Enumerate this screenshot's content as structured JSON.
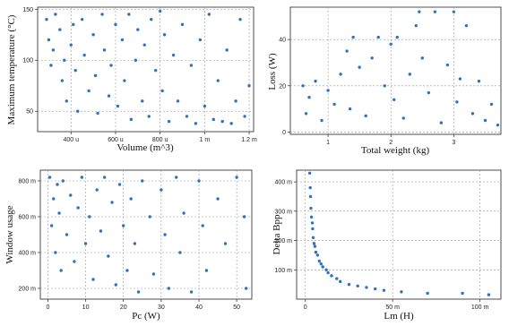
{
  "colors": {
    "points": "#2f72c0",
    "grid": "#9a9a9a",
    "frame": "#222222"
  },
  "chart_data": [
    {
      "type": "scatter",
      "xlabel": "Volume (m^3)",
      "ylabel": "Maximum temperature (°C)",
      "x_ticks": [
        "400 u",
        "600 u",
        "800 u",
        "1 m",
        "1.2 m"
      ],
      "y_ticks": [
        "50",
        "100",
        "150"
      ],
      "x_tick_values": [
        0.0004,
        0.0006,
        0.0008,
        0.001,
        0.0012
      ],
      "y_tick_values": [
        50,
        100,
        150
      ],
      "xlim": [
        0.00025,
        0.00122
      ],
      "ylim": [
        30,
        152
      ],
      "grid": true,
      "legend": "none",
      "points": [
        [
          0.00029,
          140
        ],
        [
          0.0003,
          120
        ],
        [
          0.00031,
          95
        ],
        [
          0.00032,
          110
        ],
        [
          0.00033,
          145
        ],
        [
          0.00035,
          130
        ],
        [
          0.00036,
          80
        ],
        [
          0.00037,
          100
        ],
        [
          0.00038,
          60
        ],
        [
          0.0004,
          115
        ],
        [
          0.00041,
          135
        ],
        [
          0.00042,
          90
        ],
        [
          0.00043,
          50
        ],
        [
          0.00045,
          140
        ],
        [
          0.00046,
          105
        ],
        [
          0.00048,
          70
        ],
        [
          0.0005,
          125
        ],
        [
          0.00051,
          85
        ],
        [
          0.00052,
          48
        ],
        [
          0.00054,
          145
        ],
        [
          0.00055,
          110
        ],
        [
          0.00057,
          65
        ],
        [
          0.00058,
          95
        ],
        [
          0.0006,
          135
        ],
        [
          0.00061,
          55
        ],
        [
          0.00063,
          120
        ],
        [
          0.00064,
          80
        ],
        [
          0.00066,
          145
        ],
        [
          0.00067,
          42
        ],
        [
          0.00069,
          100
        ],
        [
          0.0007,
          130
        ],
        [
          0.00072,
          60
        ],
        [
          0.00073,
          115
        ],
        [
          0.00075,
          45
        ],
        [
          0.00076,
          140
        ],
        [
          0.00078,
          90
        ],
        [
          0.0008,
          148
        ],
        [
          0.00081,
          70
        ],
        [
          0.00082,
          125
        ],
        [
          0.00084,
          40
        ],
        [
          0.00086,
          105
        ],
        [
          0.00088,
          60
        ],
        [
          0.0009,
          135
        ],
        [
          0.00092,
          45
        ],
        [
          0.00094,
          95
        ],
        [
          0.00096,
          38
        ],
        [
          0.00098,
          120
        ],
        [
          0.001,
          55
        ],
        [
          0.00102,
          145
        ],
        [
          0.00104,
          42
        ],
        [
          0.00106,
          80
        ],
        [
          0.00108,
          40
        ],
        [
          0.0011,
          110
        ],
        [
          0.00112,
          38
        ],
        [
          0.00114,
          60
        ],
        [
          0.00116,
          140
        ],
        [
          0.00118,
          45
        ],
        [
          0.0012,
          75
        ]
      ]
    },
    {
      "type": "scatter",
      "xlabel": "Total weight (kg)",
      "ylabel": "Loss (W)",
      "x_ticks": [
        "1",
        "2",
        "3"
      ],
      "y_ticks": [
        "0",
        "20",
        "40"
      ],
      "x_tick_values": [
        1,
        2,
        3
      ],
      "y_tick_values": [
        0,
        20,
        40
      ],
      "xlim": [
        0.4,
        3.75
      ],
      "ylim": [
        -1,
        54
      ],
      "grid": true,
      "legend": "none",
      "points": [
        [
          0.6,
          20
        ],
        [
          0.65,
          8
        ],
        [
          0.7,
          15
        ],
        [
          0.8,
          22
        ],
        [
          0.9,
          5
        ],
        [
          1,
          18
        ],
        [
          1.1,
          12
        ],
        [
          1.2,
          25
        ],
        [
          1.3,
          35
        ],
        [
          1.35,
          10
        ],
        [
          1.4,
          41
        ],
        [
          1.5,
          28
        ],
        [
          1.6,
          7
        ],
        [
          1.7,
          32
        ],
        [
          1.8,
          41
        ],
        [
          1.9,
          20
        ],
        [
          2,
          38
        ],
        [
          2.05,
          14
        ],
        [
          2.1,
          41
        ],
        [
          2.2,
          6
        ],
        [
          2.3,
          25
        ],
        [
          2.4,
          46
        ],
        [
          2.45,
          52
        ],
        [
          2.5,
          32
        ],
        [
          2.6,
          17
        ],
        [
          2.7,
          52
        ],
        [
          2.8,
          4
        ],
        [
          2.9,
          29
        ],
        [
          3,
          52
        ],
        [
          3.05,
          13
        ],
        [
          3.1,
          23
        ],
        [
          3.2,
          46
        ],
        [
          3.3,
          8
        ],
        [
          3.4,
          22
        ],
        [
          3.5,
          5
        ],
        [
          3.6,
          12
        ],
        [
          3.7,
          3
        ]
      ]
    },
    {
      "type": "scatter",
      "xlabel": "Pc (W)",
      "ylabel": "Window usage",
      "x_ticks": [
        "0",
        "10",
        "20",
        "30",
        "40",
        "50"
      ],
      "y_ticks": [
        "200 m",
        "400 m",
        "600 m",
        "800 m"
      ],
      "x_tick_values": [
        0,
        10,
        20,
        30,
        40,
        50
      ],
      "y_tick_values": [
        0.2,
        0.4,
        0.6,
        0.8
      ],
      "xlim": [
        -2,
        54
      ],
      "ylim": [
        0.14,
        0.86
      ],
      "grid": true,
      "legend": "none",
      "points": [
        [
          0.5,
          0.82
        ],
        [
          1,
          0.55
        ],
        [
          1.5,
          0.7
        ],
        [
          2,
          0.4
        ],
        [
          2.5,
          0.78
        ],
        [
          3,
          0.62
        ],
        [
          3.5,
          0.3
        ],
        [
          4,
          0.8
        ],
        [
          5,
          0.5
        ],
        [
          6,
          0.72
        ],
        [
          7,
          0.35
        ],
        [
          8,
          0.65
        ],
        [
          9,
          0.82
        ],
        [
          10,
          0.45
        ],
        [
          11,
          0.6
        ],
        [
          12,
          0.25
        ],
        [
          13,
          0.75
        ],
        [
          14,
          0.52
        ],
        [
          15,
          0.82
        ],
        [
          16,
          0.38
        ],
        [
          17,
          0.68
        ],
        [
          18,
          0.22
        ],
        [
          19,
          0.78
        ],
        [
          20,
          0.55
        ],
        [
          21,
          0.3
        ],
        [
          22,
          0.7
        ],
        [
          23,
          0.45
        ],
        [
          24,
          0.18
        ],
        [
          25,
          0.8
        ],
        [
          27,
          0.6
        ],
        [
          28,
          0.28
        ],
        [
          30,
          0.75
        ],
        [
          31,
          0.5
        ],
        [
          32,
          0.2
        ],
        [
          34,
          0.82
        ],
        [
          35,
          0.4
        ],
        [
          36,
          0.62
        ],
        [
          38,
          0.18
        ],
        [
          40,
          0.8
        ],
        [
          41,
          0.55
        ],
        [
          42,
          0.3
        ],
        [
          45,
          0.7
        ],
        [
          47,
          0.45
        ],
        [
          50,
          0.82
        ],
        [
          52,
          0.6
        ],
        [
          52.5,
          0.2
        ]
      ]
    },
    {
      "type": "scatter",
      "xlabel": "Lm (H)",
      "ylabel": "Delta Bpp",
      "x_ticks": [
        "0",
        "50 m",
        "100 m"
      ],
      "y_ticks": [
        "100 m",
        "200 m",
        "300 m",
        "400 m"
      ],
      "x_tick_values": [
        0,
        0.05,
        0.1
      ],
      "y_tick_values": [
        0.1,
        0.2,
        0.3,
        0.4
      ],
      "xlim": [
        -0.005,
        0.112
      ],
      "ylim": [
        0.0,
        0.44
      ],
      "grid": true,
      "legend": "none",
      "points": [
        [
          0.0025,
          0.43
        ],
        [
          0.0028,
          0.38
        ],
        [
          0.003,
          0.35
        ],
        [
          0.0032,
          0.31
        ],
        [
          0.0035,
          0.28
        ],
        [
          0.004,
          0.26
        ],
        [
          0.0042,
          0.24
        ],
        [
          0.0045,
          0.21
        ],
        [
          0.005,
          0.19
        ],
        [
          0.0055,
          0.18
        ],
        [
          0.006,
          0.16
        ],
        [
          0.007,
          0.15
        ],
        [
          0.008,
          0.13
        ],
        [
          0.009,
          0.12
        ],
        [
          0.01,
          0.11
        ],
        [
          0.012,
          0.1
        ],
        [
          0.013,
          0.09
        ],
        [
          0.015,
          0.08
        ],
        [
          0.018,
          0.07
        ],
        [
          0.02,
          0.06
        ],
        [
          0.025,
          0.05
        ],
        [
          0.03,
          0.045
        ],
        [
          0.035,
          0.04
        ],
        [
          0.04,
          0.035
        ],
        [
          0.045,
          0.03
        ],
        [
          0.055,
          0.025
        ],
        [
          0.07,
          0.02
        ],
        [
          0.09,
          0.02
        ],
        [
          0.105,
          0.015
        ]
      ]
    }
  ]
}
